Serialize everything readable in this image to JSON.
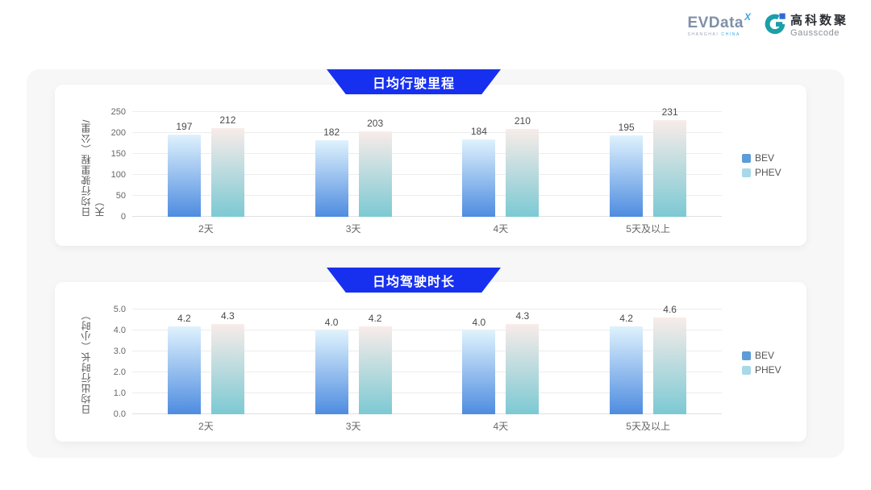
{
  "logo": {
    "evdata_word": "EVData",
    "evdata_sup": "X",
    "evdata_sub_shanghai": "SHANGHAI",
    "evdata_sub_china": "CHINA",
    "gausscode_cn": "高科数聚",
    "gausscode_en": "Gausscode"
  },
  "colors": {
    "badge_blue": "#1730ef",
    "panel_gray": "#f7f7f8",
    "gridline": "#ececec",
    "gauss_teal": "#1b9fa8",
    "gauss_blue": "#2f6bd7"
  },
  "chart_data": [
    {
      "type": "bar",
      "title": "日均行驶里程",
      "ylabel": "日均行驶里程（公里/天）",
      "categories": [
        "2天",
        "3天",
        "4天",
        "5天及以上"
      ],
      "series": [
        {
          "name": "BEV",
          "values": [
            197,
            182,
            184,
            195
          ],
          "labels": [
            "197",
            "182",
            "184",
            "195"
          ],
          "color_top": "#dff2fd",
          "color_bottom": "#4e8ce0",
          "legend_color": "#5c9cd9"
        },
        {
          "name": "PHEV",
          "values": [
            212,
            203,
            210,
            231
          ],
          "labels": [
            "212",
            "203",
            "210",
            "231"
          ],
          "color_top": "#f8ece9",
          "color_bottom": "#7cc9d3",
          "legend_color": "#a9d9e8"
        }
      ],
      "ylim": [
        0,
        250
      ],
      "yticks": [
        0,
        50,
        100,
        150,
        200,
        250
      ],
      "ytick_labels": [
        "0",
        "50",
        "100",
        "150",
        "200",
        "250"
      ],
      "grid": true,
      "legend_position": "right"
    },
    {
      "type": "bar",
      "title": "日均驾驶时长",
      "ylabel": "日均出行时长（小时）",
      "categories": [
        "2天",
        "3天",
        "4天",
        "5天及以上"
      ],
      "series": [
        {
          "name": "BEV",
          "values": [
            4.2,
            4.0,
            4.0,
            4.2
          ],
          "labels": [
            "4.2",
            "4.0",
            "4.0",
            "4.2"
          ],
          "color_top": "#dff2fd",
          "color_bottom": "#4e8ce0",
          "legend_color": "#5c9cd9"
        },
        {
          "name": "PHEV",
          "values": [
            4.3,
            4.2,
            4.3,
            4.6
          ],
          "labels": [
            "4.3",
            "4.2",
            "4.3",
            "4.6"
          ],
          "color_top": "#f8ece9",
          "color_bottom": "#7cc9d3",
          "legend_color": "#a9d9e8"
        }
      ],
      "ylim": [
        0,
        5
      ],
      "yticks": [
        0,
        1,
        2,
        3,
        4,
        5
      ],
      "ytick_labels": [
        "0.0",
        "1.0",
        "2.0",
        "3.0",
        "4.0",
        "5.0"
      ],
      "grid": true,
      "legend_position": "right"
    }
  ]
}
